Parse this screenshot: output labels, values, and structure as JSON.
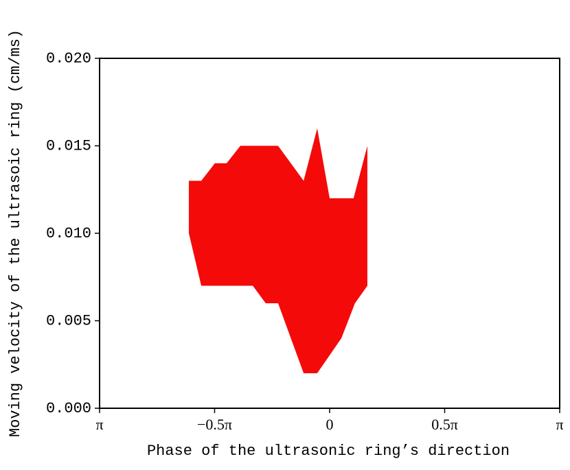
{
  "chart_data": {
    "type": "band",
    "x_label": "Phase of the ultrasonic ring’s direction",
    "y_label": "Moving velocity of the ultrasoic ring (cm/ms)",
    "color": "#f50a0a",
    "series": [
      {
        "x": [
          -0.612,
          -0.558,
          -0.499,
          -0.448,
          -0.388,
          -0.224,
          -0.113,
          -0.054,
          0,
          0.104,
          0.164
        ],
        "values": [
          0.013,
          0.013,
          0.014,
          0.014,
          0.015,
          0.015,
          0.013,
          0.016,
          0.012,
          0.012,
          0.015
        ]
      },
      {
        "x": [
          -0.612,
          -0.558,
          -0.334,
          -0.278,
          -0.224,
          -0.113,
          -0.054,
          0.051,
          0.11,
          0.164
        ],
        "values": [
          0.01,
          0.007,
          0.007,
          0.006,
          0.006,
          0.002,
          0.002,
          0.004,
          0.006,
          0.007
        ]
      }
    ],
    "xlim": [
      -1,
      1
    ],
    "xticks": [
      {
        "value": -1,
        "label": "π"
      },
      {
        "value": -0.5,
        "label": "−0.5π"
      },
      0,
      {
        "value": 0.5,
        "label": "0.5π"
      },
      {
        "value": 1,
        "label": "π"
      }
    ],
    "ylim": [
      0,
      0.02
    ],
    "yticks": [
      {
        "value": 0,
        "label": "0.000"
      },
      {
        "value": 0.005,
        "label": "0.005"
      },
      {
        "value": 0.01,
        "label": "0.010"
      },
      {
        "value": 0.015,
        "label": "0.015"
      },
      {
        "value": 0.02,
        "label": "0.020"
      }
    ]
  }
}
